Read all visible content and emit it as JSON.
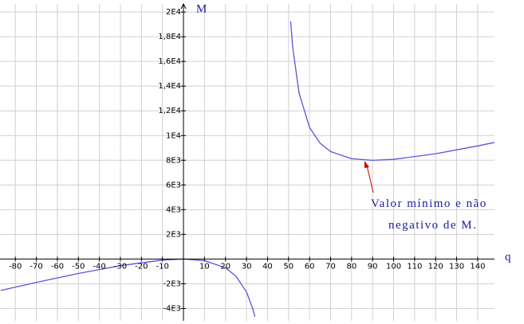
{
  "chart_data": {
    "type": "line",
    "x_label": "q",
    "y_label": "M",
    "annotation": [
      "Valor mínimo e não",
      "negativo de M."
    ],
    "xlim": [
      -87.3,
      148
    ],
    "ylim": [
      -5000,
      20650
    ],
    "xticks": [
      -80,
      -70,
      -60,
      -50,
      -40,
      -30,
      -20,
      -10,
      10,
      20,
      30,
      40,
      50,
      60,
      70,
      80,
      90,
      100,
      110,
      120,
      130,
      140
    ],
    "yticks": [
      {
        "value": -4000,
        "label": "-4E3"
      },
      {
        "value": -2000,
        "label": "-2E3"
      },
      {
        "value": 2000,
        "label": "2E3"
      },
      {
        "value": 4000,
        "label": "4E3"
      },
      {
        "value": 6000,
        "label": "6E3"
      },
      {
        "value": 8000,
        "label": "8E3"
      },
      {
        "value": 10000,
        "label": "1E4"
      },
      {
        "value": 12000,
        "label": "1,2E4"
      },
      {
        "value": 14000,
        "label": "1,4E4"
      },
      {
        "value": 16000,
        "label": "1,6E4"
      },
      {
        "value": 18000,
        "label": "1,8E4"
      },
      {
        "value": 20000,
        "label": "2E4"
      }
    ],
    "grid": true,
    "x": [
      -87,
      -70,
      -50,
      -30,
      -10,
      0,
      10,
      20,
      25,
      30,
      33,
      34,
      null,
      51,
      52,
      55,
      60,
      65,
      70,
      80,
      90,
      100,
      120,
      140,
      148
    ],
    "series": [
      {
        "color": "#5555dd",
        "values": [
          -2546,
          -1892,
          -1168,
          -533,
          -81,
          0,
          -127,
          -710,
          -1388,
          -2664,
          -4029,
          -4666,
          null,
          19247,
          17151,
          13431,
          10656,
          9380,
          8702,
          8119,
          7992,
          8073,
          8525,
          9160,
          9442
        ]
      }
    ]
  }
}
